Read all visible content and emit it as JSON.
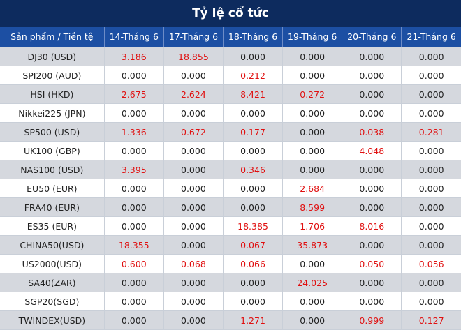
{
  "title": "Tỷ lệ cổ tức",
  "colors": {
    "header_bg": "#0d2b5e",
    "col_header_bg": "#1c4fa3",
    "shade_row": "#d5d8de",
    "highlight": "#e01010"
  },
  "columns": [
    "Sản phẩm / Tiền tệ",
    "14-Tháng 6",
    "17-Tháng 6",
    "18-Tháng 6",
    "19-Tháng 6",
    "20-Tháng 6",
    "21-Tháng 6"
  ],
  "rows": [
    {
      "product": "DJ30 (USD)",
      "values": [
        "3.186",
        "18.855",
        "0.000",
        "0.000",
        "0.000",
        "0.000"
      ],
      "highlight": [
        true,
        true,
        false,
        false,
        false,
        false
      ]
    },
    {
      "product": "SPI200 (AUD)",
      "values": [
        "0.000",
        "0.000",
        "0.212",
        "0.000",
        "0.000",
        "0.000"
      ],
      "highlight": [
        false,
        false,
        true,
        false,
        false,
        false
      ]
    },
    {
      "product": "HSI (HKD)",
      "values": [
        "2.675",
        "2.624",
        "8.421",
        "0.272",
        "0.000",
        "0.000"
      ],
      "highlight": [
        true,
        true,
        true,
        true,
        false,
        false
      ]
    },
    {
      "product": "Nikkei225 (JPN)",
      "values": [
        "0.000",
        "0.000",
        "0.000",
        "0.000",
        "0.000",
        "0.000"
      ],
      "highlight": [
        false,
        false,
        false,
        false,
        false,
        false
      ]
    },
    {
      "product": "SP500 (USD)",
      "values": [
        "1.336",
        "0.672",
        "0.177",
        "0.000",
        "0.038",
        "0.281"
      ],
      "highlight": [
        true,
        true,
        true,
        false,
        true,
        true
      ]
    },
    {
      "product": "UK100 (GBP)",
      "values": [
        "0.000",
        "0.000",
        "0.000",
        "0.000",
        "4.048",
        "0.000"
      ],
      "highlight": [
        false,
        false,
        false,
        false,
        true,
        false
      ]
    },
    {
      "product": "NAS100 (USD)",
      "values": [
        "3.395",
        "0.000",
        "0.346",
        "0.000",
        "0.000",
        "0.000"
      ],
      "highlight": [
        true,
        false,
        true,
        false,
        false,
        false
      ]
    },
    {
      "product": "EU50 (EUR)",
      "values": [
        "0.000",
        "0.000",
        "0.000",
        "2.684",
        "0.000",
        "0.000"
      ],
      "highlight": [
        false,
        false,
        false,
        true,
        false,
        false
      ]
    },
    {
      "product": "FRA40 (EUR)",
      "values": [
        "0.000",
        "0.000",
        "0.000",
        "8.599",
        "0.000",
        "0.000"
      ],
      "highlight": [
        false,
        false,
        false,
        true,
        false,
        false
      ]
    },
    {
      "product": "ES35 (EUR)",
      "values": [
        "0.000",
        "0.000",
        "18.385",
        "1.706",
        "8.016",
        "0.000"
      ],
      "highlight": [
        false,
        false,
        true,
        true,
        true,
        false
      ]
    },
    {
      "product": "CHINA50(USD)",
      "values": [
        "18.355",
        "0.000",
        "0.067",
        "35.873",
        "0.000",
        "0.000"
      ],
      "highlight": [
        true,
        false,
        true,
        true,
        false,
        false
      ]
    },
    {
      "product": "US2000(USD)",
      "values": [
        "0.600",
        "0.068",
        "0.066",
        "0.000",
        "0.050",
        "0.056"
      ],
      "highlight": [
        true,
        true,
        true,
        false,
        true,
        true
      ]
    },
    {
      "product": "SA40(ZAR)",
      "values": [
        "0.000",
        "0.000",
        "0.000",
        "24.025",
        "0.000",
        "0.000"
      ],
      "highlight": [
        false,
        false,
        false,
        true,
        false,
        false
      ]
    },
    {
      "product": "SGP20(SGD)",
      "values": [
        "0.000",
        "0.000",
        "0.000",
        "0.000",
        "0.000",
        "0.000"
      ],
      "highlight": [
        false,
        false,
        false,
        false,
        false,
        false
      ]
    },
    {
      "product": "TWINDEX(USD)",
      "values": [
        "0.000",
        "0.000",
        "1.271",
        "0.000",
        "0.999",
        "0.127"
      ],
      "highlight": [
        false,
        false,
        true,
        false,
        true,
        true
      ]
    }
  ]
}
